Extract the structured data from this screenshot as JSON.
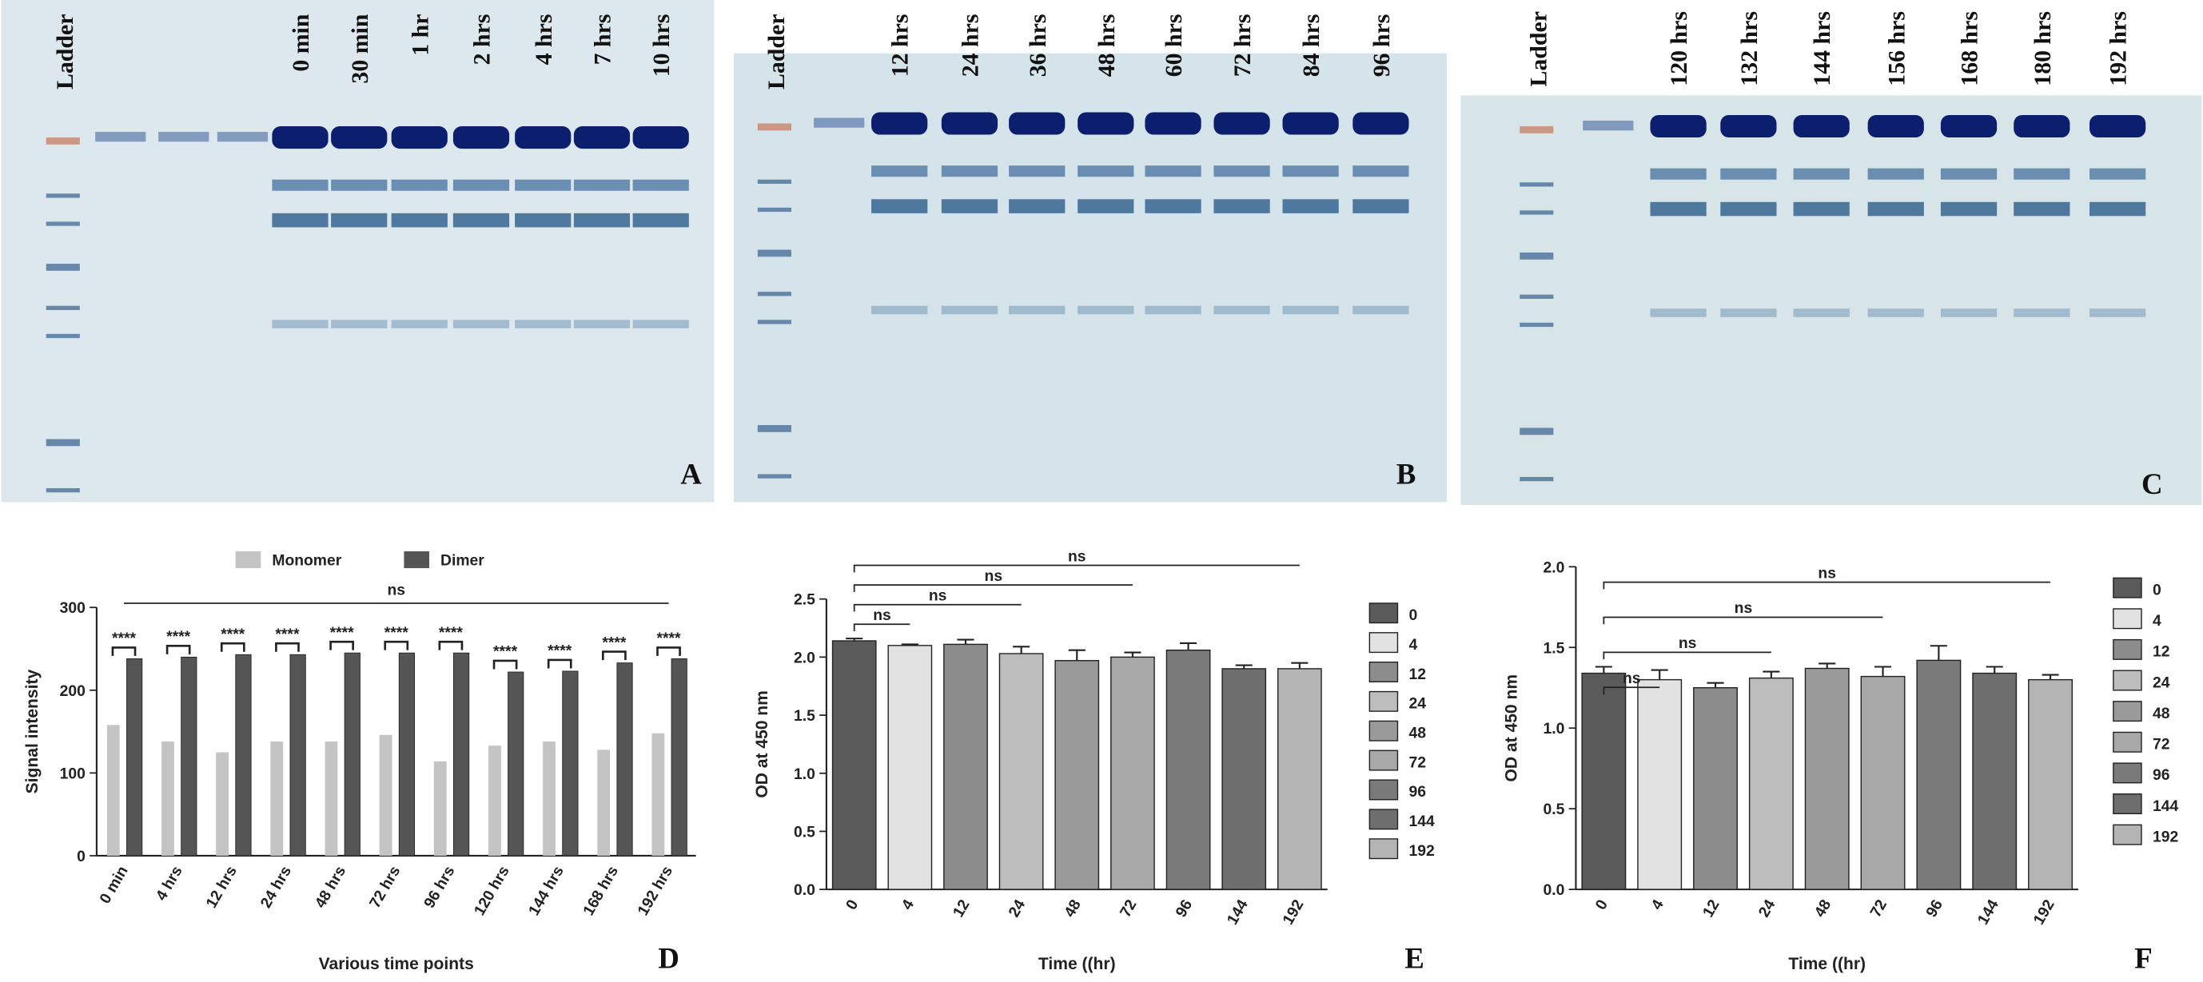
{
  "gels": [
    {
      "lane_labels": [
        "Ladder",
        "0 min",
        "30 min",
        "1 hr",
        "2 hrs",
        "4 hrs",
        "7 hrs",
        "10 hrs"
      ],
      "panel_label": "A"
    },
    {
      "lane_labels": [
        "Ladder",
        "12 hrs",
        "24 hrs",
        "36 hrs",
        "48 hrs",
        "60 hrs",
        "72 hrs",
        "84 hrs",
        "96 hrs"
      ],
      "panel_label": "B"
    },
    {
      "lane_labels": [
        "Ladder",
        "120 hrs",
        "132 hrs",
        "144 hrs",
        "156 hrs",
        "168 hrs",
        "180 hrs",
        "192 hrs"
      ],
      "panel_label": "C"
    }
  ],
  "chart_data": [
    {
      "type": "grouped_bar",
      "panel_label": "D",
      "y_label": "Signal intensity",
      "x_label": "Various time points",
      "categories": [
        "0 min",
        "4 hrs",
        "12 hrs",
        "24 hrs",
        "48 hrs",
        "72 hrs",
        "96 hrs",
        "120 hrs",
        "144 hrs",
        "168 hrs",
        "192 hrs"
      ],
      "series": [
        {
          "name": "Monomer",
          "color": "#c4c4c4",
          "values": [
            158,
            138,
            125,
            138,
            138,
            146,
            114,
            133,
            138,
            128,
            148
          ]
        },
        {
          "name": "Dimer",
          "color": "#555555",
          "values": [
            238,
            240,
            243,
            243,
            245,
            245,
            245,
            222,
            223,
            233,
            238
          ]
        }
      ],
      "pair_labels": [
        "****",
        "****",
        "****",
        "****",
        "****",
        "****",
        "****",
        "****",
        "****",
        "****",
        "****"
      ],
      "overall_label": "ns",
      "ylim": [
        0,
        300
      ],
      "yticks": [
        0,
        100,
        200,
        300
      ]
    },
    {
      "type": "bar",
      "panel_label": "E",
      "y_label": "OD at 450 nm",
      "x_label": "Time ((hr)",
      "categories": [
        "0",
        "4",
        "12",
        "24",
        "48",
        "72",
        "96",
        "144",
        "192"
      ],
      "values": [
        2.14,
        2.1,
        2.11,
        2.03,
        1.97,
        2.0,
        2.06,
        1.9,
        1.9
      ],
      "errors": [
        0.02,
        0.01,
        0.04,
        0.06,
        0.09,
        0.04,
        0.06,
        0.03,
        0.05
      ],
      "colors": [
        "#5a5a5a",
        "#e2e2e2",
        "#8c8c8c",
        "#bdbdbd",
        "#9a9a9a",
        "#a8a8a8",
        "#7a7a7a",
        "#6e6e6e",
        "#b4b4b4"
      ],
      "comparison_labels": [
        "ns",
        "ns",
        "ns",
        "ns"
      ],
      "ylim": [
        0,
        2.5
      ],
      "yticks": [
        {
          "value": 0,
          "label": "0.0"
        },
        {
          "value": 0.5,
          "label": "0.5"
        },
        {
          "value": 1,
          "label": "1.0"
        },
        {
          "value": 1.5,
          "label": "1.5"
        },
        {
          "value": 2,
          "label": "2.0"
        },
        {
          "value": 2.5,
          "label": "2.5"
        }
      ]
    },
    {
      "type": "bar",
      "panel_label": "F",
      "y_label": "OD at 450 nm",
      "x_label": "Time ((hr)",
      "categories": [
        "0",
        "4",
        "12",
        "24",
        "48",
        "72",
        "96",
        "144",
        "192"
      ],
      "values": [
        1.34,
        1.3,
        1.25,
        1.31,
        1.37,
        1.32,
        1.42,
        1.34,
        1.3
      ],
      "errors": [
        0.04,
        0.06,
        0.03,
        0.04,
        0.03,
        0.06,
        0.09,
        0.04,
        0.03
      ],
      "colors": [
        "#5a5a5a",
        "#e2e2e2",
        "#8c8c8c",
        "#bdbdbd",
        "#9a9a9a",
        "#a8a8a8",
        "#7a7a7a",
        "#6e6e6e",
        "#b4b4b4"
      ],
      "comparison_labels": [
        "ns",
        "ns",
        "ns",
        "ns"
      ],
      "ylim": [
        0,
        2
      ],
      "yticks": [
        {
          "value": 0,
          "label": "0.0"
        },
        {
          "value": 0.5,
          "label": "0.5"
        },
        {
          "value": 1,
          "label": "1.0"
        },
        {
          "value": 1.5,
          "label": "1.5"
        },
        {
          "value": 2,
          "label": "2.0"
        }
      ]
    }
  ]
}
